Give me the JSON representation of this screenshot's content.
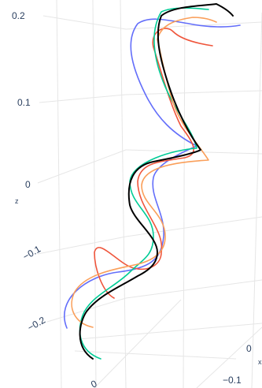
{
  "chart_data": {
    "type": "line",
    "projection": "3d",
    "grid": true,
    "legend": "none",
    "axes": {
      "x": {
        "title": "x",
        "ticks": [
          "0",
          "−0.1"
        ]
      },
      "y": {
        "title": "",
        "ticks": [
          "0"
        ]
      },
      "z": {
        "title": "z",
        "ticks": [
          "0.2",
          "0.1",
          "0",
          "−0.1",
          "−0.2"
        ]
      }
    },
    "series": [
      {
        "color": "#636efa"
      },
      {
        "color": "#ef553b"
      },
      {
        "color": "#00cc96"
      },
      {
        "color": "#fa9f5a"
      },
      {
        "color": "#000000"
      }
    ]
  }
}
